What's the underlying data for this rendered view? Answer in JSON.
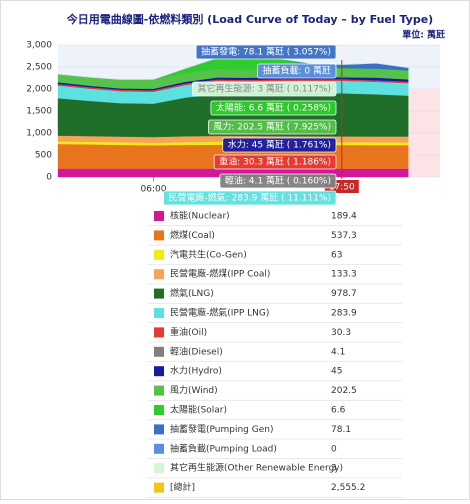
{
  "chart_data": {
    "type": "area",
    "stacked": true,
    "title": "今日用電曲線圖-依燃料類別 (Load Curve of Today – by Fuel Type)",
    "unit": "單位: 萬瓩",
    "x": [
      0,
      2,
      4,
      6,
      8,
      10,
      12,
      14,
      16,
      17.83,
      20,
      22
    ],
    "xlim": [
      0,
      24
    ],
    "xticks": [
      {
        "value": 6,
        "label": "06:00"
      }
    ],
    "current": {
      "value": 17.83,
      "label": "17:50"
    },
    "ylim": [
      0,
      3000
    ],
    "yticks": [
      0,
      500,
      {
        "value": 1000,
        "label": "1,000"
      },
      {
        "value": 1500,
        "label": "1,500"
      },
      {
        "value": 2000,
        "label": "2,000"
      },
      {
        "value": 2500,
        "label": "2,500"
      },
      {
        "value": 3000,
        "label": "3,000"
      }
    ],
    "series": [
      {
        "name": "核能(Nuclear)",
        "color": "#d4169a",
        "values": [
          190,
          190,
          190,
          190,
          190,
          190,
          190,
          190,
          189.5,
          189.4,
          189.4,
          189.4
        ]
      },
      {
        "name": "燃煤(Coal)",
        "color": "#e8741e",
        "values": [
          560,
          550,
          540,
          530,
          540,
          545,
          545,
          540,
          540,
          537.3,
          535,
          535
        ]
      },
      {
        "name": "汽電共生(Co-Gen)",
        "color": "#f0ec12",
        "values": [
          60,
          60,
          58,
          58,
          62,
          64,
          64,
          64,
          63,
          63,
          62,
          62
        ]
      },
      {
        "name": "民營電廠-燃煤(IPP Coal)",
        "color": "#f4a55a",
        "values": [
          130,
          130,
          130,
          130,
          133,
          134,
          134,
          134,
          133.3,
          133.3,
          133,
          133
        ]
      },
      {
        "name": "燃氣(LNG)",
        "color": "#1f6f2a",
        "values": [
          850,
          800,
          760,
          760,
          880,
          960,
          950,
          970,
          980,
          978.7,
          960,
          930
        ]
      },
      {
        "name": "民營電廠-燃氣(IPP LNG)",
        "color": "#5ce0e0",
        "values": [
          290,
          280,
          270,
          270,
          285,
          290,
          290,
          290,
          285,
          283.9,
          285,
          285
        ],
        "tooltip": "民營電廠-燃氣: 283.9 萬瓩 ( 11.111%)"
      },
      {
        "name": "重油(Oil)",
        "color": "#e53935",
        "values": [
          30,
          30,
          30,
          30,
          30,
          30,
          30,
          30,
          30.3,
          30.3,
          30,
          30
        ],
        "tooltip": "重油: 30.3 萬瓩 ( 1.186%)"
      },
      {
        "name": "輕油(Diesel)",
        "color": "#808080",
        "values": [
          4,
          4,
          4,
          4,
          4,
          4,
          4,
          4,
          4.1,
          4.1,
          4,
          4
        ],
        "tooltip": "輕油: 4.1 萬瓩 ( 0.160%)"
      },
      {
        "name": "水力(Hydro)",
        "color": "#1a1aa0",
        "values": [
          40,
          30,
          30,
          35,
          40,
          45,
          50,
          45,
          45,
          45,
          60,
          50
        ],
        "tooltip": "水力: 45 萬瓩 ( 1.761%)"
      },
      {
        "name": "風力(Wind)",
        "color": "#55c24a",
        "values": [
          180,
          190,
          200,
          210,
          200,
          190,
          190,
          195,
          200,
          202.5,
          205,
          205
        ],
        "tooltip": "風力: 202.5 萬瓩 ( 7.925%)"
      },
      {
        "name": "太陽能(Solar)",
        "color": "#2ecc2e",
        "values": [
          0,
          0,
          0,
          0,
          100,
          250,
          300,
          220,
          60,
          6.6,
          0,
          0
        ],
        "tooltip": "太陽能: 6.6 萬瓩 ( 0.258%)"
      },
      {
        "name": "抽蓄發電(Pumping Gen)",
        "color": "#3a6fc4",
        "values": [
          0,
          0,
          0,
          0,
          0,
          0,
          0,
          0,
          40,
          78.1,
          120,
          60
        ],
        "tooltip": "抽蓄發電: 78.1 萬瓩 ( 3.057%)"
      },
      {
        "name": "抽蓄負載(Pumping Load)",
        "color": "#5b8ee0",
        "values": [
          0,
          0,
          0,
          0,
          0,
          0,
          0,
          0,
          0,
          0,
          0,
          0
        ],
        "tooltip": "抽蓄負載: 0 萬瓩"
      },
      {
        "name": "其它再生能源(Other Renewable Energy)",
        "color": "#d6f5d6",
        "values": [
          3,
          3,
          3,
          3,
          3,
          3,
          3,
          3,
          3,
          3,
          3,
          3
        ],
        "tooltip": "其它再生能源: 3 萬瓩 ( 0.117%)"
      }
    ],
    "total": {
      "name": "[總計]",
      "color": "#f2c418",
      "value": 2555.2,
      "value_label": "2,555.2"
    }
  }
}
